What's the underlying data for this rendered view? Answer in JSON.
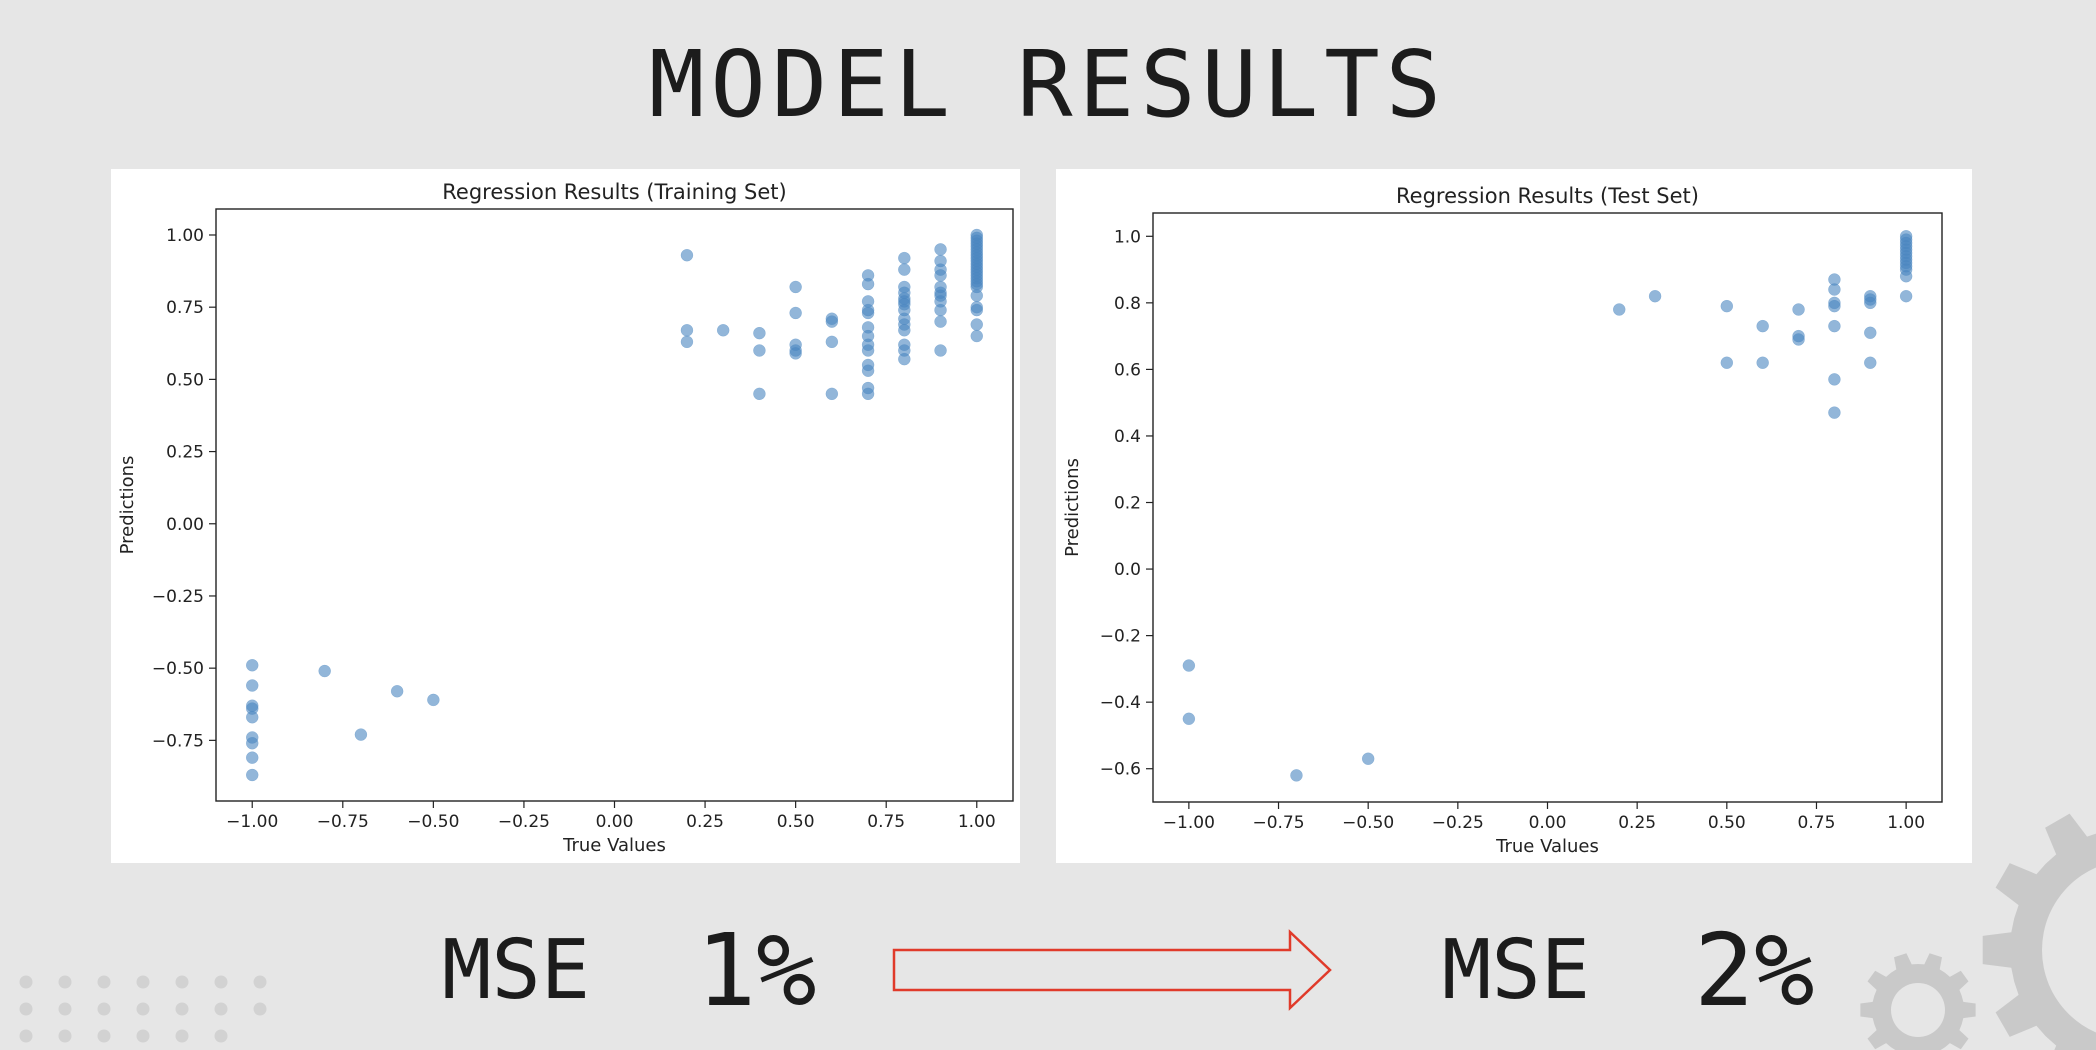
{
  "page": {
    "title": "MODEL RESULTS"
  },
  "comparison": {
    "train_label": "MSE",
    "train_value": "1%",
    "test_label": "MSE",
    "test_value": "2%",
    "arrow_color": "#e03a2a"
  },
  "colors": {
    "background": "#e6e6e6",
    "point_fill": "#4a86c0",
    "gear": "#c9c9c9",
    "dots": "#d2d2d2"
  },
  "chart_data": [
    {
      "type": "scatter",
      "title": "Regression Results (Training Set)",
      "xlabel": "True Values",
      "ylabel": "Predictions",
      "xlim": [
        -1.1,
        1.1
      ],
      "ylim": [
        -0.96,
        1.09
      ],
      "xticks": [
        -1.0,
        -0.75,
        -0.5,
        -0.25,
        0.0,
        0.25,
        0.5,
        0.75,
        1.0
      ],
      "xtick_labels": [
        "−1.00",
        "−0.75",
        "−0.50",
        "−0.25",
        "0.00",
        "0.25",
        "0.50",
        "0.75",
        "1.00"
      ],
      "yticks": [
        -0.75,
        -0.5,
        -0.25,
        0.0,
        0.25,
        0.5,
        0.75,
        1.0
      ],
      "ytick_labels": [
        "−0.75",
        "−0.50",
        "−0.25",
        "0.00",
        "0.25",
        "0.50",
        "0.75",
        "1.00"
      ],
      "grid": false,
      "points": [
        [
          -1.0,
          -0.49
        ],
        [
          -1.0,
          -0.56
        ],
        [
          -1.0,
          -0.63
        ],
        [
          -1.0,
          -0.64
        ],
        [
          -1.0,
          -0.67
        ],
        [
          -1.0,
          -0.74
        ],
        [
          -1.0,
          -0.76
        ],
        [
          -1.0,
          -0.81
        ],
        [
          -1.0,
          -0.87
        ],
        [
          -0.8,
          -0.51
        ],
        [
          -0.7,
          -0.73
        ],
        [
          -0.6,
          -0.58
        ],
        [
          -0.5,
          -0.61
        ],
        [
          0.2,
          0.93
        ],
        [
          0.2,
          0.67
        ],
        [
          0.2,
          0.63
        ],
        [
          0.3,
          0.67
        ],
        [
          0.4,
          0.66
        ],
        [
          0.4,
          0.6
        ],
        [
          0.4,
          0.45
        ],
        [
          0.5,
          0.82
        ],
        [
          0.5,
          0.73
        ],
        [
          0.5,
          0.62
        ],
        [
          0.5,
          0.6
        ],
        [
          0.5,
          0.59
        ],
        [
          0.6,
          0.7
        ],
        [
          0.6,
          0.71
        ],
        [
          0.6,
          0.63
        ],
        [
          0.6,
          0.45
        ],
        [
          0.7,
          0.86
        ],
        [
          0.7,
          0.83
        ],
        [
          0.7,
          0.77
        ],
        [
          0.7,
          0.74
        ],
        [
          0.7,
          0.73
        ],
        [
          0.7,
          0.68
        ],
        [
          0.7,
          0.65
        ],
        [
          0.7,
          0.62
        ],
        [
          0.7,
          0.6
        ],
        [
          0.7,
          0.55
        ],
        [
          0.7,
          0.53
        ],
        [
          0.7,
          0.47
        ],
        [
          0.7,
          0.45
        ],
        [
          0.8,
          0.92
        ],
        [
          0.8,
          0.88
        ],
        [
          0.8,
          0.82
        ],
        [
          0.8,
          0.8
        ],
        [
          0.8,
          0.78
        ],
        [
          0.8,
          0.77
        ],
        [
          0.8,
          0.76
        ],
        [
          0.8,
          0.74
        ],
        [
          0.8,
          0.71
        ],
        [
          0.8,
          0.69
        ],
        [
          0.8,
          0.67
        ],
        [
          0.8,
          0.62
        ],
        [
          0.8,
          0.6
        ],
        [
          0.8,
          0.57
        ],
        [
          0.9,
          0.95
        ],
        [
          0.9,
          0.91
        ],
        [
          0.9,
          0.88
        ],
        [
          0.9,
          0.86
        ],
        [
          0.9,
          0.82
        ],
        [
          0.9,
          0.8
        ],
        [
          0.9,
          0.79
        ],
        [
          0.9,
          0.77
        ],
        [
          0.9,
          0.74
        ],
        [
          0.9,
          0.7
        ],
        [
          0.9,
          0.6
        ],
        [
          1.0,
          1.0
        ],
        [
          1.0,
          0.99
        ],
        [
          1.0,
          0.98
        ],
        [
          1.0,
          0.97
        ],
        [
          1.0,
          0.96
        ],
        [
          1.0,
          0.95
        ],
        [
          1.0,
          0.94
        ],
        [
          1.0,
          0.93
        ],
        [
          1.0,
          0.92
        ],
        [
          1.0,
          0.91
        ],
        [
          1.0,
          0.9
        ],
        [
          1.0,
          0.89
        ],
        [
          1.0,
          0.88
        ],
        [
          1.0,
          0.87
        ],
        [
          1.0,
          0.86
        ],
        [
          1.0,
          0.85
        ],
        [
          1.0,
          0.84
        ],
        [
          1.0,
          0.83
        ],
        [
          1.0,
          0.82
        ],
        [
          1.0,
          0.79
        ],
        [
          1.0,
          0.75
        ],
        [
          1.0,
          0.74
        ],
        [
          1.0,
          0.69
        ],
        [
          1.0,
          0.65
        ]
      ]
    },
    {
      "type": "scatter",
      "title": "Regression Results (Test Set)",
      "xlabel": "True Values",
      "ylabel": "Predictions",
      "xlim": [
        -1.1,
        1.1
      ],
      "ylim": [
        -0.7,
        1.07
      ],
      "xticks": [
        -1.0,
        -0.75,
        -0.5,
        -0.25,
        0.0,
        0.25,
        0.5,
        0.75,
        1.0
      ],
      "xtick_labels": [
        "−1.00",
        "−0.75",
        "−0.50",
        "−0.25",
        "0.00",
        "0.25",
        "0.50",
        "0.75",
        "1.00"
      ],
      "yticks": [
        -0.6,
        -0.4,
        -0.2,
        0.0,
        0.2,
        0.4,
        0.6,
        0.8,
        1.0
      ],
      "ytick_labels": [
        "−0.6",
        "−0.4",
        "−0.2",
        "0.0",
        "0.2",
        "0.4",
        "0.6",
        "0.8",
        "1.0"
      ],
      "grid": false,
      "points": [
        [
          -1.0,
          -0.29
        ],
        [
          -1.0,
          -0.45
        ],
        [
          -0.7,
          -0.62
        ],
        [
          -0.5,
          -0.57
        ],
        [
          0.2,
          0.78
        ],
        [
          0.3,
          0.82
        ],
        [
          0.5,
          0.79
        ],
        [
          0.5,
          0.62
        ],
        [
          0.6,
          0.73
        ],
        [
          0.6,
          0.62
        ],
        [
          0.7,
          0.78
        ],
        [
          0.7,
          0.7
        ],
        [
          0.7,
          0.69
        ],
        [
          0.8,
          0.87
        ],
        [
          0.8,
          0.84
        ],
        [
          0.8,
          0.8
        ],
        [
          0.8,
          0.79
        ],
        [
          0.8,
          0.73
        ],
        [
          0.8,
          0.57
        ],
        [
          0.8,
          0.47
        ],
        [
          0.9,
          0.82
        ],
        [
          0.9,
          0.81
        ],
        [
          0.9,
          0.8
        ],
        [
          0.9,
          0.71
        ],
        [
          0.9,
          0.62
        ],
        [
          1.0,
          1.0
        ],
        [
          1.0,
          0.99
        ],
        [
          1.0,
          0.98
        ],
        [
          1.0,
          0.97
        ],
        [
          1.0,
          0.96
        ],
        [
          1.0,
          0.95
        ],
        [
          1.0,
          0.94
        ],
        [
          1.0,
          0.93
        ],
        [
          1.0,
          0.92
        ],
        [
          1.0,
          0.91
        ],
        [
          1.0,
          0.9
        ],
        [
          1.0,
          0.88
        ],
        [
          1.0,
          0.82
        ]
      ]
    }
  ]
}
